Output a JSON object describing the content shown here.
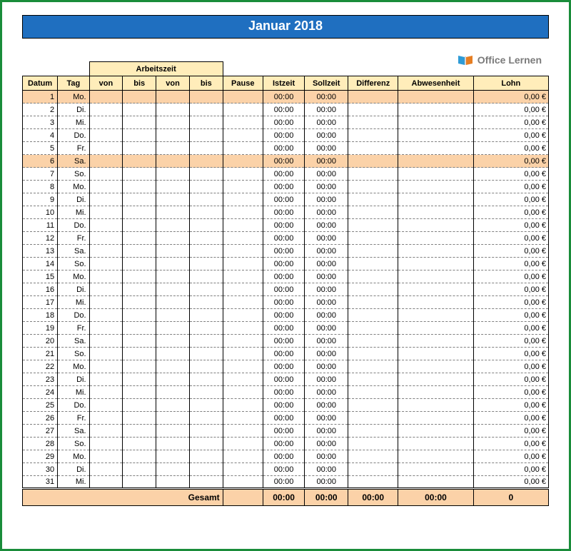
{
  "title": "Januar 2018",
  "logo_text": "Office Lernen",
  "colors": {
    "outer_border": "#1a8c3a",
    "title_bg": "#1f6fc0",
    "title_fg": "#ffffff",
    "header_bg": "#ffedba",
    "highlight_bg": "#fbd2a8",
    "grid_dash": "#808080",
    "text": "#000000",
    "logo_text": "#7a7a7a"
  },
  "headers": {
    "arbeitszeit": "Arbeitszeit",
    "datum": "Datum",
    "tag": "Tag",
    "von": "von",
    "bis": "bis",
    "pause": "Pause",
    "istzeit": "Istzeit",
    "sollzeit": "Sollzeit",
    "differenz": "Differenz",
    "abwesenheit": "Abwesenheit",
    "lohn": "Lohn"
  },
  "rows": [
    {
      "n": "1",
      "tag": "Mo.",
      "ist": "00:00",
      "soll": "00:00",
      "lohn": "0,00 €",
      "hl": true
    },
    {
      "n": "2",
      "tag": "Di.",
      "ist": "00:00",
      "soll": "00:00",
      "lohn": "0,00 €",
      "hl": false
    },
    {
      "n": "3",
      "tag": "Mi.",
      "ist": "00:00",
      "soll": "00:00",
      "lohn": "0,00 €",
      "hl": false
    },
    {
      "n": "4",
      "tag": "Do.",
      "ist": "00:00",
      "soll": "00:00",
      "lohn": "0,00 €",
      "hl": false
    },
    {
      "n": "5",
      "tag": "Fr.",
      "ist": "00:00",
      "soll": "00:00",
      "lohn": "0,00 €",
      "hl": false
    },
    {
      "n": "6",
      "tag": "Sa.",
      "ist": "00:00",
      "soll": "00:00",
      "lohn": "0,00 €",
      "hl": true
    },
    {
      "n": "7",
      "tag": "So.",
      "ist": "00:00",
      "soll": "00:00",
      "lohn": "0,00 €",
      "hl": false
    },
    {
      "n": "8",
      "tag": "Mo.",
      "ist": "00:00",
      "soll": "00:00",
      "lohn": "0,00 €",
      "hl": false
    },
    {
      "n": "9",
      "tag": "Di.",
      "ist": "00:00",
      "soll": "00:00",
      "lohn": "0,00 €",
      "hl": false
    },
    {
      "n": "10",
      "tag": "Mi.",
      "ist": "00:00",
      "soll": "00:00",
      "lohn": "0,00 €",
      "hl": false
    },
    {
      "n": "11",
      "tag": "Do.",
      "ist": "00:00",
      "soll": "00:00",
      "lohn": "0,00 €",
      "hl": false
    },
    {
      "n": "12",
      "tag": "Fr.",
      "ist": "00:00",
      "soll": "00:00",
      "lohn": "0,00 €",
      "hl": false
    },
    {
      "n": "13",
      "tag": "Sa.",
      "ist": "00:00",
      "soll": "00:00",
      "lohn": "0,00 €",
      "hl": false
    },
    {
      "n": "14",
      "tag": "So.",
      "ist": "00:00",
      "soll": "00:00",
      "lohn": "0,00 €",
      "hl": false
    },
    {
      "n": "15",
      "tag": "Mo.",
      "ist": "00:00",
      "soll": "00:00",
      "lohn": "0,00 €",
      "hl": false
    },
    {
      "n": "16",
      "tag": "Di.",
      "ist": "00:00",
      "soll": "00:00",
      "lohn": "0,00 €",
      "hl": false
    },
    {
      "n": "17",
      "tag": "Mi.",
      "ist": "00:00",
      "soll": "00:00",
      "lohn": "0,00 €",
      "hl": false
    },
    {
      "n": "18",
      "tag": "Do.",
      "ist": "00:00",
      "soll": "00:00",
      "lohn": "0,00 €",
      "hl": false
    },
    {
      "n": "19",
      "tag": "Fr.",
      "ist": "00:00",
      "soll": "00:00",
      "lohn": "0,00 €",
      "hl": false
    },
    {
      "n": "20",
      "tag": "Sa.",
      "ist": "00:00",
      "soll": "00:00",
      "lohn": "0,00 €",
      "hl": false
    },
    {
      "n": "21",
      "tag": "So.",
      "ist": "00:00",
      "soll": "00:00",
      "lohn": "0,00 €",
      "hl": false
    },
    {
      "n": "22",
      "tag": "Mo.",
      "ist": "00:00",
      "soll": "00:00",
      "lohn": "0,00 €",
      "hl": false
    },
    {
      "n": "23",
      "tag": "Di.",
      "ist": "00:00",
      "soll": "00:00",
      "lohn": "0,00 €",
      "hl": false
    },
    {
      "n": "24",
      "tag": "Mi.",
      "ist": "00:00",
      "soll": "00:00",
      "lohn": "0,00 €",
      "hl": false
    },
    {
      "n": "25",
      "tag": "Do.",
      "ist": "00:00",
      "soll": "00:00",
      "lohn": "0,00 €",
      "hl": false
    },
    {
      "n": "26",
      "tag": "Fr.",
      "ist": "00:00",
      "soll": "00:00",
      "lohn": "0,00 €",
      "hl": false
    },
    {
      "n": "27",
      "tag": "Sa.",
      "ist": "00:00",
      "soll": "00:00",
      "lohn": "0,00 €",
      "hl": false
    },
    {
      "n": "28",
      "tag": "So.",
      "ist": "00:00",
      "soll": "00:00",
      "lohn": "0,00 €",
      "hl": false
    },
    {
      "n": "29",
      "tag": "Mo.",
      "ist": "00:00",
      "soll": "00:00",
      "lohn": "0,00 €",
      "hl": false
    },
    {
      "n": "30",
      "tag": "Di.",
      "ist": "00:00",
      "soll": "00:00",
      "lohn": "0,00 €",
      "hl": false
    },
    {
      "n": "31",
      "tag": "Mi.",
      "ist": "00:00",
      "soll": "00:00",
      "lohn": "0,00 €",
      "hl": false
    }
  ],
  "totals": {
    "label": "Gesamt",
    "ist": "00:00",
    "soll": "00:00",
    "diff": "00:00",
    "abw": "00:00",
    "lohn": "0"
  }
}
